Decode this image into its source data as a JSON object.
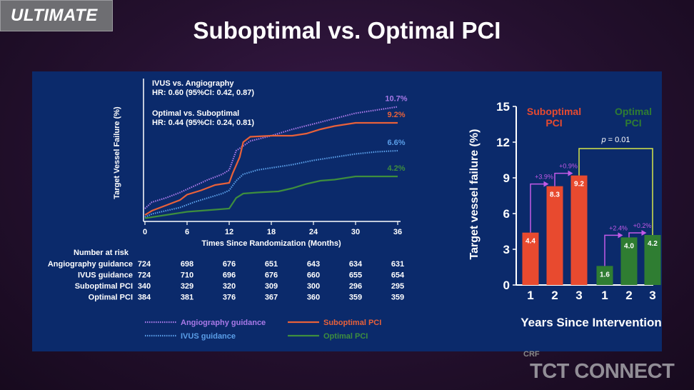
{
  "badge": "ULTIMATE",
  "title": "Suboptimal vs. Optimal PCI",
  "watermark": {
    "crf": "CRF",
    "brand": "TCT CONNECT"
  },
  "colors": {
    "angio": "#a879e8",
    "ivus": "#5a9ee8",
    "suboptimal": "#e8613a",
    "optimal": "#3e8e3e",
    "bar_suboptimal": "#e84a2f",
    "bar_optimal": "#2f7d32",
    "panel": "#0b2a6b",
    "arrow": "#c35ae8",
    "pline": "#d7e64a"
  },
  "chart_data": [
    {
      "type": "line",
      "ylabel": "Target Vessel Failure (%)",
      "xlabel": "Times Since Randomization (Months)",
      "xticks": [
        "0",
        "6",
        "12",
        "18",
        "24",
        "30",
        "36"
      ],
      "xlim": [
        0,
        36
      ],
      "annotations": {
        "line1": "IVUS vs. Angiography",
        "line2": "HR: 0.60 (95%CI: 0.42, 0.87)",
        "line3": "Optimal vs. Suboptimal",
        "line4": "HR: 0.44 (95%CI: 0.24, 0.81)"
      },
      "series": [
        {
          "name": "Angiography guidance",
          "end_label": "10.7%",
          "style": "dotted",
          "points": [
            [
              0,
              1.2
            ],
            [
              1,
              1.8
            ],
            [
              3,
              2.2
            ],
            [
              5,
              2.7
            ],
            [
              7,
              3.3
            ],
            [
              9,
              3.9
            ],
            [
              11,
              4.4
            ],
            [
              12,
              4.8
            ],
            [
              13,
              6.6
            ],
            [
              15,
              7.5
            ],
            [
              18,
              8.0
            ],
            [
              21,
              8.6
            ],
            [
              24,
              9.1
            ],
            [
              27,
              9.6
            ],
            [
              30,
              10.1
            ],
            [
              33,
              10.4
            ],
            [
              36,
              10.7
            ]
          ]
        },
        {
          "name": "Suboptimal PCI",
          "end_label": "9.2%",
          "style": "solid",
          "points": [
            [
              0,
              0.6
            ],
            [
              1,
              1.0
            ],
            [
              3,
              1.5
            ],
            [
              5,
              2.0
            ],
            [
              6,
              2.5
            ],
            [
              8,
              2.9
            ],
            [
              10,
              3.4
            ],
            [
              12,
              3.6
            ],
            [
              12.5,
              4.5
            ],
            [
              13.5,
              6.0
            ],
            [
              14,
              7.4
            ],
            [
              15,
              7.9
            ],
            [
              18,
              8.0
            ],
            [
              21,
              8.0
            ],
            [
              23,
              8.2
            ],
            [
              25,
              8.6
            ],
            [
              27,
              8.9
            ],
            [
              30,
              9.2
            ],
            [
              36,
              9.2
            ]
          ]
        },
        {
          "name": "IVUS guidance",
          "end_label": "6.6%",
          "style": "dotted",
          "points": [
            [
              0,
              0.4
            ],
            [
              1,
              0.7
            ],
            [
              3,
              1.0
            ],
            [
              5,
              1.3
            ],
            [
              7,
              1.8
            ],
            [
              9,
              2.2
            ],
            [
              11,
              2.6
            ],
            [
              12,
              2.9
            ],
            [
              13,
              3.8
            ],
            [
              14,
              4.4
            ],
            [
              16,
              4.8
            ],
            [
              18,
              5.0
            ],
            [
              21,
              5.3
            ],
            [
              24,
              5.7
            ],
            [
              27,
              6.0
            ],
            [
              30,
              6.3
            ],
            [
              33,
              6.5
            ],
            [
              36,
              6.6
            ]
          ]
        },
        {
          "name": "Optimal PCI",
          "end_label": "4.2%",
          "style": "solid",
          "points": [
            [
              0,
              0.3
            ],
            [
              2,
              0.5
            ],
            [
              4,
              0.7
            ],
            [
              6,
              0.9
            ],
            [
              8,
              1.0
            ],
            [
              10,
              1.1
            ],
            [
              12,
              1.2
            ],
            [
              13,
              2.2
            ],
            [
              14,
              2.6
            ],
            [
              16,
              2.7
            ],
            [
              19,
              2.8
            ],
            [
              21,
              3.1
            ],
            [
              23,
              3.5
            ],
            [
              25,
              3.8
            ],
            [
              27,
              3.9
            ],
            [
              30,
              4.2
            ],
            [
              36,
              4.2
            ]
          ]
        }
      ],
      "risk_table": {
        "header": "Number at risk",
        "rows": [
          {
            "label": "Angiography guidance",
            "values": [
              "724",
              "698",
              "676",
              "651",
              "643",
              "634",
              "631"
            ]
          },
          {
            "label": "IVUS guidance",
            "values": [
              "724",
              "710",
              "696",
              "676",
              "660",
              "655",
              "654"
            ]
          },
          {
            "label": "Suboptimal PCI",
            "values": [
              "340",
              "329",
              "320",
              "309",
              "300",
              "296",
              "295"
            ]
          },
          {
            "label": "Optimal PCI",
            "values": [
              "384",
              "381",
              "376",
              "367",
              "360",
              "359",
              "359"
            ]
          }
        ]
      },
      "legend": [
        {
          "name": "Angiography guidance",
          "key": "angio"
        },
        {
          "name": "Suboptimal PCI",
          "key": "suboptimal"
        },
        {
          "name": "IVUS guidance",
          "key": "ivus"
        },
        {
          "name": "Optimal PCI",
          "key": "optimal"
        }
      ]
    },
    {
      "type": "bar",
      "ylabel": "Target vessel failure (%)",
      "xlabel": "Years Since Intervention",
      "ylim": [
        0,
        15
      ],
      "yticks": [
        "0",
        "3",
        "6",
        "9",
        "12",
        "15"
      ],
      "groups": [
        {
          "name": "Suboptimal PCI",
          "line1": "Suboptimal",
          "line2": "PCI",
          "key": "bar_suboptimal",
          "categories": [
            "1",
            "2",
            "3"
          ],
          "values": [
            4.4,
            8.3,
            9.2
          ],
          "labels": [
            "4.4",
            "8.3",
            "9.2"
          ],
          "increments": [
            "+3.9%",
            "+0.9%"
          ]
        },
        {
          "name": "Optimal PCI",
          "line1": "Optimal",
          "line2": "PCI",
          "key": "bar_optimal",
          "categories": [
            "1",
            "2",
            "3"
          ],
          "values": [
            1.6,
            4.0,
            4.2
          ],
          "labels": [
            "1.6",
            "4.0",
            "4.2"
          ],
          "increments": [
            "+2.4%",
            "+0.2%"
          ]
        }
      ],
      "pvalue": {
        "p": "p",
        "rest": " = 0.01"
      }
    }
  ]
}
